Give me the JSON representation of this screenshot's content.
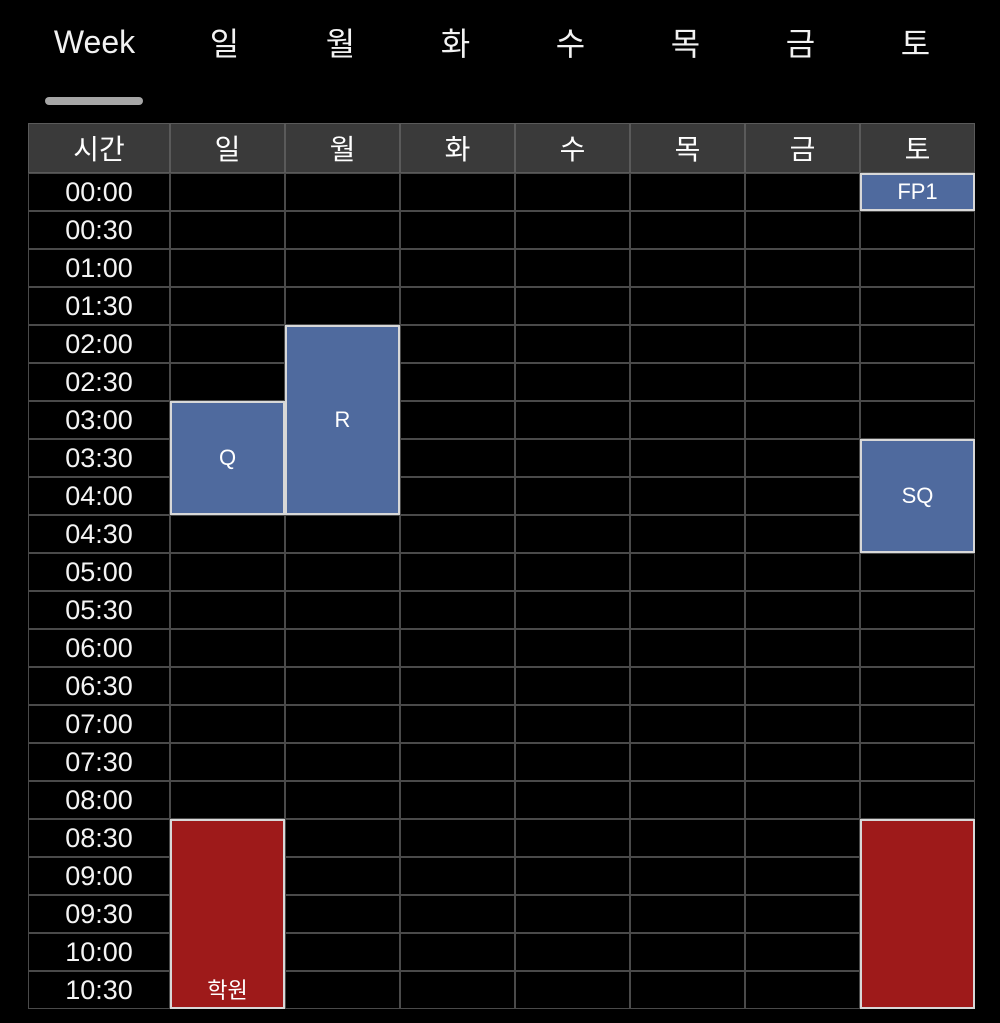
{
  "tabs": [
    {
      "label": "Week",
      "active": true
    },
    {
      "label": "일"
    },
    {
      "label": "월"
    },
    {
      "label": "화"
    },
    {
      "label": "수"
    },
    {
      "label": "목"
    },
    {
      "label": "금"
    },
    {
      "label": "토"
    }
  ],
  "table": {
    "time_header": "시간",
    "days": [
      "일",
      "월",
      "화",
      "수",
      "목",
      "금",
      "토"
    ],
    "times": [
      "00:00",
      "00:30",
      "01:00",
      "01:30",
      "02:00",
      "02:30",
      "03:00",
      "03:30",
      "04:00",
      "04:30",
      "05:00",
      "05:30",
      "06:00",
      "06:30",
      "07:00",
      "07:30",
      "08:00",
      "08:30",
      "09:00",
      "09:30",
      "10:00",
      "10:30"
    ],
    "events": [
      {
        "label": "FP1",
        "day": 6,
        "start": "00:00",
        "end": "00:30",
        "color": "#4f6a9e"
      },
      {
        "label": "R",
        "day": 1,
        "start": "02:00",
        "end": "04:30",
        "color": "#4f6a9e"
      },
      {
        "label": "Q",
        "day": 0,
        "start": "03:00",
        "end": "04:30",
        "color": "#4f6a9e"
      },
      {
        "label": "SQ",
        "day": 6,
        "start": "03:30",
        "end": "05:00",
        "color": "#4f6a9e"
      },
      {
        "label": "학원",
        "day": 0,
        "start": "08:30",
        "end": "11:00",
        "color": "#9e1a1a"
      },
      {
        "label": "",
        "day": 6,
        "start": "08:30",
        "end": "11:00",
        "color": "#9e1a1a"
      }
    ]
  },
  "colors": {
    "background": "#000000",
    "header_bg": "#3a3a3a",
    "grid_line": "#4a4a4a",
    "event_blue": "#4f6a9e",
    "event_red": "#9e1a1a",
    "tab_indicator": "#a6a6a6"
  }
}
